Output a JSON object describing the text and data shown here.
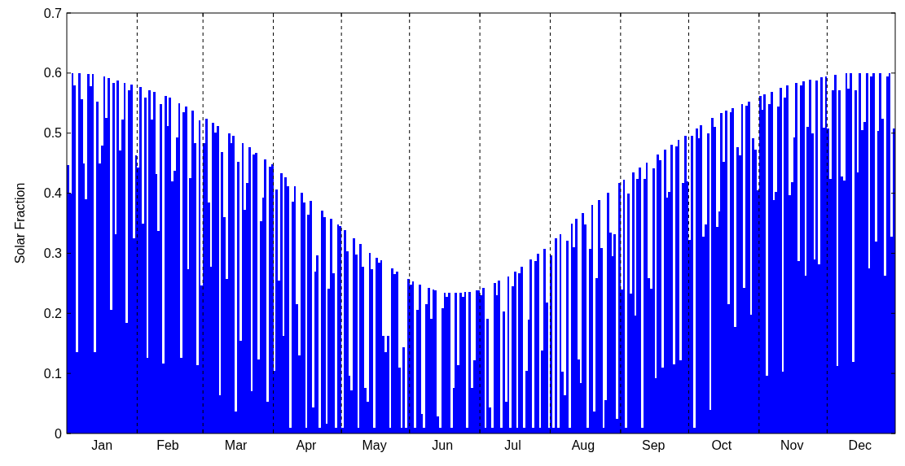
{
  "chart_data": {
    "type": "bar",
    "ylabel": "Solar Fraction",
    "color": "#0000ff",
    "categories": [
      null,
      null,
      null,
      null,
      null,
      null,
      null,
      null,
      null,
      null,
      null,
      null,
      null,
      null,
      null,
      "Jan",
      null,
      null,
      null,
      null,
      null,
      null,
      null,
      null,
      null,
      null,
      null,
      null,
      null,
      null,
      null,
      null,
      null,
      null,
      null,
      null,
      null,
      null,
      null,
      null,
      null,
      null,
      null,
      null,
      "Feb",
      null,
      null,
      null,
      null,
      null,
      null,
      null,
      null,
      null,
      null,
      null,
      null,
      null,
      null,
      null,
      null,
      null,
      null,
      null,
      null,
      null,
      null,
      null,
      null,
      null,
      null,
      null,
      null,
      null,
      "Mar",
      null,
      null,
      null,
      null,
      null,
      null,
      null,
      null,
      null,
      null,
      null,
      null,
      null,
      null,
      null,
      null,
      null,
      null,
      null,
      null,
      null,
      null,
      null,
      null,
      null,
      null,
      null,
      null,
      null,
      null,
      "Apr",
      null,
      null,
      null,
      null,
      null,
      null,
      null,
      null,
      null,
      null,
      null,
      null,
      null,
      null,
      null,
      null,
      null,
      null,
      null,
      null,
      null,
      null,
      null,
      null,
      null,
      null,
      null,
      null,
      null,
      "May",
      null,
      null,
      null,
      null,
      null,
      null,
      null,
      null,
      null,
      null,
      null,
      null,
      null,
      null,
      null,
      null,
      null,
      null,
      null,
      null,
      null,
      null,
      null,
      null,
      null,
      null,
      null,
      null,
      null,
      "Jun",
      null,
      null,
      null,
      null,
      null,
      null,
      null,
      null,
      null,
      null,
      null,
      null,
      null,
      null,
      null,
      null,
      null,
      null,
      null,
      null,
      null,
      null,
      null,
      null,
      null,
      null,
      null,
      null,
      null,
      null,
      "Jul",
      null,
      null,
      null,
      null,
      null,
      null,
      null,
      null,
      null,
      null,
      null,
      null,
      null,
      null,
      null,
      null,
      null,
      null,
      null,
      null,
      null,
      null,
      null,
      null,
      null,
      null,
      null,
      null,
      null,
      null,
      "Aug",
      null,
      null,
      null,
      null,
      null,
      null,
      null,
      null,
      null,
      null,
      null,
      null,
      null,
      null,
      null,
      null,
      null,
      null,
      null,
      null,
      null,
      null,
      null,
      null,
      null,
      null,
      null,
      null,
      null,
      null,
      "Sep",
      null,
      null,
      null,
      null,
      null,
      null,
      null,
      null,
      null,
      null,
      null,
      null,
      null,
      null,
      null,
      null,
      null,
      null,
      null,
      null,
      null,
      null,
      null,
      null,
      null,
      null,
      null,
      null,
      null,
      "Oct",
      null,
      null,
      null,
      null,
      null,
      null,
      null,
      null,
      null,
      null,
      null,
      null,
      null,
      null,
      null,
      null,
      null,
      null,
      null,
      null,
      null,
      null,
      null,
      null,
      null,
      null,
      null,
      null,
      null,
      null,
      "Nov",
      null,
      null,
      null,
      null,
      null,
      null,
      null,
      null,
      null,
      null,
      null,
      null,
      null,
      null,
      null,
      null,
      null,
      null,
      null,
      null,
      null,
      null,
      null,
      null,
      null,
      null,
      null,
      null,
      null,
      "Dec",
      null,
      null,
      null,
      null,
      null,
      null,
      null,
      null,
      null,
      null,
      null,
      null,
      null,
      null,
      null
    ],
    "values": [
      0.447,
      0.4,
      0.6,
      0.58,
      0.135,
      0.6,
      0.557,
      0.449,
      0.39,
      0.599,
      0.578,
      0.598,
      0.135,
      0.552,
      0.449,
      0.479,
      0.594,
      0.525,
      0.592,
      0.206,
      0.583,
      0.332,
      0.588,
      0.471,
      0.523,
      0.584,
      0.184,
      0.572,
      0.581,
      0.325,
      0.463,
      0.443,
      0.577,
      0.35,
      0.559,
      0.126,
      0.571,
      0.523,
      0.568,
      0.432,
      0.337,
      0.549,
      0.116,
      0.562,
      0.512,
      0.559,
      0.42,
      0.437,
      0.493,
      0.55,
      0.126,
      0.535,
      0.544,
      0.273,
      0.425,
      0.538,
      0.483,
      0.114,
      0.521,
      0.247,
      0.483,
      0.524,
      0.384,
      0.278,
      0.517,
      0.501,
      0.512,
      0.063,
      0.468,
      0.36,
      0.257,
      0.5,
      0.484,
      0.495,
      0.036,
      0.452,
      0.155,
      0.484,
      0.372,
      0.417,
      0.476,
      0.07,
      0.465,
      0.467,
      0.123,
      0.353,
      0.392,
      0.456,
      0.053,
      0.444,
      0.448,
      0.104,
      0.406,
      0.255,
      0.433,
      0.162,
      0.426,
      0.412,
      0.01,
      0.386,
      0.412,
      0.215,
      0.13,
      0.401,
      0.385,
      0.01,
      0.364,
      0.387,
      0.044,
      0.27,
      0.297,
      0.01,
      0.371,
      0.36,
      0.016,
      0.241,
      0.358,
      0.267,
      0.01,
      0.348,
      0.345,
      0.01,
      0.338,
      0.303,
      0.096,
      0.072,
      0.325,
      0.298,
      0.01,
      0.315,
      0.278,
      0.076,
      0.053,
      0.301,
      0.273,
      0.01,
      0.293,
      0.285,
      0.288,
      0.163,
      0.135,
      0.163,
      0.01,
      0.275,
      0.265,
      0.269,
      0.11,
      0.01,
      0.143,
      0.01,
      0.257,
      0.248,
      0.253,
      0.01,
      0.206,
      0.248,
      0.032,
      0.01,
      0.215,
      0.242,
      0.191,
      0.24,
      0.238,
      0.028,
      0.01,
      0.209,
      0.234,
      0.227,
      0.234,
      0.01,
      0.076,
      0.234,
      0.114,
      0.234,
      0.227,
      0.235,
      0.01,
      0.236,
      0.076,
      0.122,
      0.238,
      0.238,
      0.23,
      0.242,
      0.01,
      0.191,
      0.043,
      0.01,
      0.251,
      0.23,
      0.254,
      0.01,
      0.203,
      0.053,
      0.261,
      0.01,
      0.245,
      0.269,
      0.01,
      0.267,
      0.278,
      0.01,
      0.104,
      0.189,
      0.29,
      0.01,
      0.287,
      0.299,
      0.01,
      0.138,
      0.308,
      0.218,
      0.01,
      0.297,
      0.01,
      0.325,
      0.01,
      0.332,
      0.103,
      0.063,
      0.321,
      0.01,
      0.35,
      0.31,
      0.357,
      0.123,
      0.084,
      0.367,
      0.348,
      0.01,
      0.307,
      0.38,
      0.036,
      0.259,
      0.389,
      0.309,
      0.01,
      0.056,
      0.401,
      0.334,
      0.295,
      0.332,
      0.024,
      0.417,
      0.239,
      0.423,
      0.01,
      0.4,
      0.233,
      0.434,
      0.197,
      0.424,
      0.443,
      0.01,
      0.424,
      0.451,
      0.258,
      0.241,
      0.442,
      0.092,
      0.465,
      0.455,
      0.11,
      0.473,
      0.392,
      0.402,
      0.481,
      0.115,
      0.478,
      0.489,
      0.122,
      0.417,
      0.496,
      0.42,
      0.322,
      0.495,
      0.01,
      0.508,
      0.492,
      0.513,
      0.328,
      0.348,
      0.499,
      0.039,
      0.525,
      0.511,
      0.344,
      0.369,
      0.534,
      0.452,
      0.537,
      0.215,
      0.535,
      0.542,
      0.178,
      0.477,
      0.463,
      0.549,
      0.243,
      0.545,
      0.553,
      0.198,
      0.491,
      0.472,
      0.405,
      0.562,
      0.539,
      0.565,
      0.096,
      0.549,
      0.569,
      0.388,
      0.402,
      0.544,
      0.575,
      0.103,
      0.559,
      0.58,
      0.397,
      0.418,
      0.493,
      0.584,
      0.287,
      0.58,
      0.586,
      0.263,
      0.511,
      0.589,
      0.5,
      0.29,
      0.588,
      0.281,
      0.593,
      0.509,
      0.595,
      0.508,
      0.424,
      0.571,
      0.597,
      0.112,
      0.571,
      0.428,
      0.421,
      0.6,
      0.574,
      0.6,
      0.119,
      0.571,
      0.434,
      0.6,
      0.505,
      0.519,
      0.6,
      0.275,
      0.595,
      0.6,
      0.32,
      0.503,
      0.6,
      0.524,
      0.263,
      0.595,
      0.6,
      0.328,
      0.508
    ],
    "ylim": [
      0,
      0.7
    ],
    "yticks": [
      0,
      0.1,
      0.2,
      0.3,
      0.4,
      0.5,
      0.6,
      0.7
    ]
  }
}
